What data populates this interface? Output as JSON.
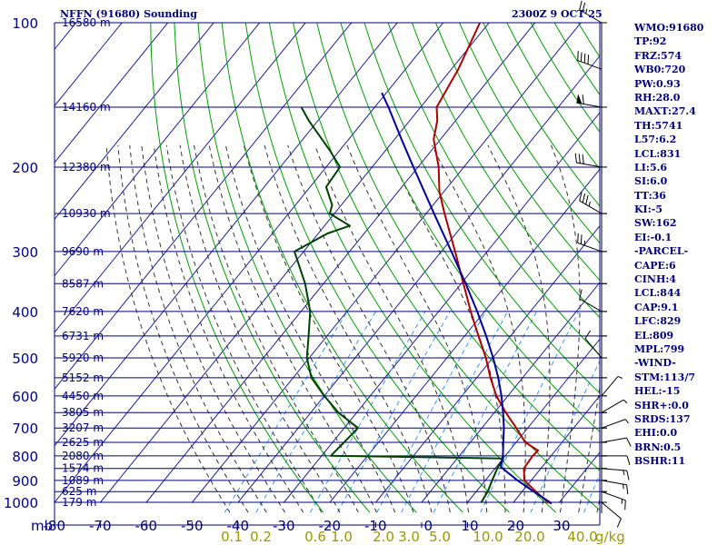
{
  "header": {
    "station_title": "NFFN (91680) Sounding",
    "timestamp": "2300Z  9 OCT 25"
  },
  "colors": {
    "grid": "#000080",
    "isotherm": "#1f1f9a",
    "dry_adiabat": "#00a000",
    "moist_adiabat": "#333333",
    "mixing_ratio": "#3399ff",
    "temperature": "#b00000",
    "dewpoint": "#004000",
    "parcel": "#0000a0",
    "label_text": "#000080",
    "mixing_ratio_label": "#999900"
  },
  "chart_data": {
    "type": "line",
    "chart_kind": "skew-T log-P sounding",
    "pressure_axis": {
      "unit": "mb",
      "scale": "log",
      "ylim": [
        1000,
        100
      ],
      "ticks": [
        100,
        200,
        300,
        400,
        500,
        600,
        700,
        800,
        900,
        1000
      ],
      "tick_labels": [
        "100",
        "200",
        "300",
        "400",
        "500",
        "600",
        "700",
        "800",
        "900",
        "1000"
      ]
    },
    "temperature_axis": {
      "xlim": [
        -80,
        35
      ],
      "ticks": [
        -80,
        -70,
        -60,
        -50,
        -40,
        -30,
        -20,
        -10,
        0,
        10,
        20,
        30
      ],
      "tick_labels": [
        "-80",
        "-70",
        "-60",
        "-50",
        "-40",
        "-30",
        "-20",
        "-10",
        "0",
        "10",
        "20",
        "30"
      ]
    },
    "height_labels": [
      {
        "p": 100,
        "text": "16580 m"
      },
      {
        "p": 150,
        "text": "14160 m"
      },
      {
        "p": 200,
        "text": "12380 m"
      },
      {
        "p": 250,
        "text": "10930 m"
      },
      {
        "p": 300,
        "text": "9690 m"
      },
      {
        "p": 350,
        "text": "8587 m"
      },
      {
        "p": 400,
        "text": "7620 m"
      },
      {
        "p": 450,
        "text": "6731 m"
      },
      {
        "p": 500,
        "text": "5920 m"
      },
      {
        "p": 550,
        "text": "5152 m"
      },
      {
        "p": 600,
        "text": "4450 m"
      },
      {
        "p": 650,
        "text": "3805 m"
      },
      {
        "p": 700,
        "text": "3207 m"
      },
      {
        "p": 750,
        "text": "2625 m"
      },
      {
        "p": 800,
        "text": "2080 m"
      },
      {
        "p": 850,
        "text": "1574 m"
      },
      {
        "p": 900,
        "text": "1089 m"
      },
      {
        "p": 950,
        "text": "625 m"
      },
      {
        "p": 1000,
        "text": "179 m"
      }
    ],
    "mixing_ratio_labels": {
      "unit": "g/kg",
      "values": [
        0.1,
        0.2,
        0.6,
        1.0,
        2.0,
        3.0,
        5.0,
        10.0,
        20.0,
        40.0
      ],
      "labels": [
        "0.1",
        "0.2",
        "0.6",
        "1.0",
        "2.0",
        "3.0",
        "5.0",
        "10.0",
        "20.0",
        "40.0"
      ]
    },
    "series": [
      {
        "name": "Temperature",
        "color": "#b00000",
        "points": [
          [
            1005,
            28.5
          ],
          [
            1000,
            27.5
          ],
          [
            950,
            23.0
          ],
          [
            900,
            18.5
          ],
          [
            850,
            16.3
          ],
          [
            800,
            16.0
          ],
          [
            780,
            16.2
          ],
          [
            750,
            12.0
          ],
          [
            700,
            7.5
          ],
          [
            650,
            2.5
          ],
          [
            600,
            -2.5
          ],
          [
            550,
            -7.0
          ],
          [
            500,
            -11.5
          ],
          [
            450,
            -17.0
          ],
          [
            400,
            -23.0
          ],
          [
            350,
            -29.5
          ],
          [
            300,
            -37.0
          ],
          [
            250,
            -46.0
          ],
          [
            225,
            -51.0
          ],
          [
            200,
            -55.5
          ],
          [
            175,
            -61.5
          ],
          [
            160,
            -64.0
          ],
          [
            150,
            -66.5
          ],
          [
            125,
            -68.5
          ],
          [
            100,
            -72.0
          ]
        ]
      },
      {
        "name": "Dewpoint",
        "color": "#004000",
        "points": [
          [
            1000,
            13.0
          ],
          [
            950,
            12.5
          ],
          [
            900,
            11.5
          ],
          [
            850,
            10.5
          ],
          [
            810,
            10.0
          ],
          [
            800,
            -28.0
          ],
          [
            750,
            -27.5
          ],
          [
            700,
            -27.0
          ],
          [
            650,
            -34.0
          ],
          [
            600,
            -40.0
          ],
          [
            550,
            -46.0
          ],
          [
            500,
            -50.5
          ],
          [
            450,
            -54.0
          ],
          [
            400,
            -58.0
          ],
          [
            350,
            -64.0
          ],
          [
            300,
            -72.0
          ],
          [
            275,
            -68.0
          ],
          [
            265,
            -64.5
          ],
          [
            250,
            -71.0
          ],
          [
            240,
            -72.0
          ],
          [
            220,
            -76.5
          ],
          [
            200,
            -77.0
          ],
          [
            185,
            -82.0
          ],
          [
            160,
            -92.0
          ],
          [
            150,
            -96.0
          ]
        ]
      },
      {
        "name": "Parcel",
        "color": "#0000a0",
        "points": [
          [
            1005,
            28.5
          ],
          [
            950,
            22.5
          ],
          [
            900,
            17.0
          ],
          [
            844,
            11.0
          ],
          [
            800,
            9.5
          ],
          [
            750,
            7.2
          ],
          [
            700,
            4.8
          ],
          [
            650,
            1.9
          ],
          [
            600,
            -1.4
          ],
          [
            550,
            -5.3
          ],
          [
            500,
            -9.9
          ],
          [
            450,
            -15.3
          ],
          [
            400,
            -21.6
          ],
          [
            350,
            -29.0
          ],
          [
            300,
            -37.8
          ],
          [
            250,
            -48.3
          ],
          [
            200,
            -61.0
          ],
          [
            175,
            -68.5
          ],
          [
            150,
            -77.0
          ],
          [
            140,
            -81.0
          ]
        ]
      }
    ],
    "wind_barbs": [
      {
        "p": 1000,
        "dir": 130,
        "spd": 10
      },
      {
        "p": 950,
        "dir": 110,
        "spd": 15
      },
      {
        "p": 900,
        "dir": 100,
        "spd": 15
      },
      {
        "p": 850,
        "dir": 95,
        "spd": 15
      },
      {
        "p": 800,
        "dir": 90,
        "spd": 10
      },
      {
        "p": 750,
        "dir": 80,
        "spd": 10
      },
      {
        "p": 700,
        "dir": 70,
        "spd": 5
      },
      {
        "p": 650,
        "dir": 60,
        "spd": 5
      },
      {
        "p": 600,
        "dir": 40,
        "spd": 5
      },
      {
        "p": 500,
        "dir": 320,
        "spd": 10
      },
      {
        "p": 400,
        "dir": 300,
        "spd": 10
      },
      {
        "p": 300,
        "dir": 290,
        "spd": 25
      },
      {
        "p": 250,
        "dir": 300,
        "spd": 35
      },
      {
        "p": 200,
        "dir": 280,
        "spd": 30
      },
      {
        "p": 150,
        "dir": 280,
        "spd": 60
      },
      {
        "p": 125,
        "dir": 290,
        "spd": 40
      },
      {
        "p": 100,
        "dir": 300,
        "spd": 25
      }
    ]
  },
  "indices": [
    "WMO:91680",
    "TP:92",
    "FRZ:574",
    "WB0:720",
    "PW:0.93",
    "RH:28.0",
    "MAXT:27.4",
    "TH:5741",
    "L57:6.2",
    "LCL:831",
    "LI:5.6",
    "SI:6.0",
    "TT:36",
    "KI:-5",
    "SW:162",
    "EI:-0.1",
    "-PARCEL-",
    "CAPE:6",
    "CINH:4",
    "LCL:844",
    "CAP:9.1",
    "LFC:829",
    "EL:809",
    "MPL:799",
    "-WIND-",
    "STM:113/7",
    "HEL:-15",
    "SHR+:0.0",
    "SRDS:137",
    "EHI:0.0",
    "BRN:0.5",
    "BSHR:11"
  ]
}
